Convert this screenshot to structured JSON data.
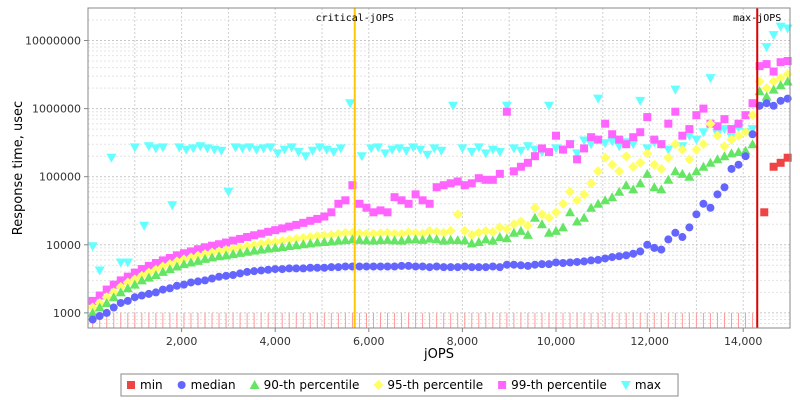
{
  "chart_data": {
    "type": "scatter",
    "title": "",
    "xlabel": "jOPS",
    "ylabel": "Response time, usec",
    "x_scale": "linear",
    "y_scale": "log",
    "xlim": [
      0,
      15000
    ],
    "ylim": [
      600,
      30000000
    ],
    "grid": true,
    "legend_position": "bottom",
    "x_ticks": [
      "2,000",
      "4,000",
      "6,000",
      "8,000",
      "10,000",
      "12,000",
      "14,000"
    ],
    "x_tick_values": [
      2000,
      4000,
      6000,
      8000,
      10000,
      12000,
      14000
    ],
    "y_ticks": [
      "1000",
      "10000",
      "100000",
      "1000000",
      "10000000"
    ],
    "y_tick_values": [
      1000,
      10000,
      100000,
      1000000,
      10000000
    ],
    "markers": [
      {
        "label": "critical-jOPS",
        "x": 5700,
        "color": "#ffc800"
      },
      {
        "label": "max-jOPS",
        "x": 14300,
        "color": "#dd0000"
      }
    ],
    "series": [
      {
        "name": "min",
        "color": "#ee4444",
        "shape": "square",
        "x": [
          14450,
          14650,
          14800,
          14950
        ],
        "y": [
          30000,
          140000,
          160000,
          190000
        ]
      },
      {
        "name": "median",
        "color": "#6464ff",
        "shape": "circle",
        "x": [
          100,
          250,
          400,
          550,
          700,
          850,
          1000,
          1150,
          1300,
          1450,
          1600,
          1750,
          1900,
          2050,
          2200,
          2350,
          2500,
          2650,
          2800,
          2950,
          3100,
          3250,
          3400,
          3550,
          3700,
          3850,
          4000,
          4150,
          4300,
          4450,
          4600,
          4750,
          4900,
          5050,
          5200,
          5350,
          5500,
          5650,
          5800,
          5950,
          6100,
          6250,
          6400,
          6550,
          6700,
          6850,
          7000,
          7150,
          7300,
          7450,
          7600,
          7750,
          7900,
          8050,
          8200,
          8350,
          8500,
          8650,
          8800,
          8950,
          9100,
          9250,
          9400,
          9550,
          9700,
          9850,
          10000,
          10150,
          10300,
          10450,
          10600,
          10750,
          10900,
          11050,
          11200,
          11350,
          11500,
          11650,
          11800,
          11950,
          12100,
          12250,
          12400,
          12550,
          12700,
          12850,
          13000,
          13150,
          13300,
          13450,
          13600,
          13750,
          13900,
          14050,
          14200,
          14350,
          14500,
          14650,
          14800,
          14950
        ],
        "y": [
          800,
          900,
          1000,
          1200,
          1400,
          1500,
          1700,
          1800,
          1900,
          2000,
          2200,
          2300,
          2500,
          2600,
          2800,
          2900,
          3000,
          3200,
          3400,
          3500,
          3600,
          3800,
          4000,
          4100,
          4200,
          4300,
          4400,
          4400,
          4500,
          4500,
          4500,
          4600,
          4600,
          4600,
          4700,
          4700,
          4800,
          4800,
          4800,
          4800,
          4800,
          4800,
          4800,
          4800,
          4900,
          4900,
          4800,
          4800,
          4700,
          4800,
          4700,
          4700,
          4700,
          4800,
          4700,
          4700,
          4700,
          4800,
          4700,
          5100,
          5100,
          5000,
          4900,
          5100,
          5200,
          5200,
          5500,
          5400,
          5500,
          5600,
          5700,
          5900,
          6000,
          6300,
          6600,
          6800,
          7000,
          7400,
          8000,
          10000,
          9000,
          8500,
          12000,
          15000,
          13000,
          18000,
          28000,
          40000,
          35000,
          55000,
          70000,
          130000,
          150000,
          200000,
          420000,
          1100000,
          1200000,
          1100000,
          1300000,
          1400000
        ]
      },
      {
        "name": "90-th percentile",
        "color": "#64e664",
        "shape": "triangle-up",
        "x": [
          100,
          250,
          400,
          550,
          700,
          850,
          1000,
          1150,
          1300,
          1450,
          1600,
          1750,
          1900,
          2050,
          2200,
          2350,
          2500,
          2650,
          2800,
          2950,
          3100,
          3250,
          3400,
          3550,
          3700,
          3850,
          4000,
          4150,
          4300,
          4450,
          4600,
          4750,
          4900,
          5050,
          5200,
          5350,
          5500,
          5650,
          5800,
          5950,
          6100,
          6250,
          6400,
          6550,
          6700,
          6850,
          7000,
          7150,
          7300,
          7450,
          7600,
          7750,
          7900,
          8050,
          8200,
          8350,
          8500,
          8650,
          8800,
          8950,
          9100,
          9250,
          9400,
          9550,
          9700,
          9850,
          10000,
          10150,
          10300,
          10450,
          10600,
          10750,
          10900,
          11050,
          11200,
          11350,
          11500,
          11650,
          11800,
          11950,
          12100,
          12250,
          12400,
          12550,
          12700,
          12850,
          13000,
          13150,
          13300,
          13450,
          13600,
          13750,
          13900,
          14050,
          14200,
          14350,
          14500,
          14650,
          14800,
          14950
        ],
        "y": [
          1000,
          1200,
          1400,
          1700,
          2000,
          2300,
          2600,
          3000,
          3300,
          3600,
          4000,
          4400,
          4800,
          5200,
          5500,
          5800,
          6200,
          6500,
          6800,
          7000,
          7300,
          7600,
          7900,
          8200,
          8500,
          8800,
          9000,
          9300,
          9600,
          9900,
          10200,
          10500,
          10800,
          11000,
          11200,
          11500,
          11700,
          12000,
          11800,
          11600,
          11500,
          11700,
          11800,
          11600,
          11500,
          11900,
          12000,
          11800,
          12300,
          12000,
          11500,
          11800,
          11700,
          11600,
          10500,
          11000,
          12000,
          11500,
          13000,
          12500,
          15000,
          16000,
          14000,
          25000,
          20000,
          15000,
          16000,
          18000,
          30000,
          22000,
          25000,
          35000,
          40000,
          45000,
          50000,
          60000,
          75000,
          65000,
          80000,
          110000,
          70000,
          65000,
          90000,
          120000,
          110000,
          100000,
          120000,
          140000,
          160000,
          180000,
          200000,
          220000,
          230000,
          240000,
          300000,
          1800000,
          1500000,
          1900000,
          2200000,
          2500000
        ]
      },
      {
        "name": "95-th percentile",
        "color": "#ffff64",
        "shape": "diamond",
        "x": [
          100,
          250,
          400,
          550,
          700,
          850,
          1000,
          1150,
          1300,
          1450,
          1600,
          1750,
          1900,
          2050,
          2200,
          2350,
          2500,
          2650,
          2800,
          2950,
          3100,
          3250,
          3400,
          3550,
          3700,
          3850,
          4000,
          4150,
          4300,
          4450,
          4600,
          4750,
          4900,
          5050,
          5200,
          5350,
          5500,
          5650,
          5800,
          5950,
          6100,
          6250,
          6400,
          6550,
          6700,
          6850,
          7000,
          7150,
          7300,
          7450,
          7600,
          7750,
          7900,
          8050,
          8200,
          8350,
          8500,
          8650,
          8800,
          8950,
          9100,
          9250,
          9400,
          9550,
          9700,
          9850,
          10000,
          10150,
          10300,
          10450,
          10600,
          10750,
          10900,
          11050,
          11200,
          11350,
          11500,
          11650,
          11800,
          11950,
          12100,
          12250,
          12400,
          12550,
          12700,
          12850,
          13000,
          13150,
          13300,
          13450,
          13600,
          13750,
          13900,
          14050,
          14200,
          14350,
          14500,
          14650,
          14800,
          14950
        ],
        "y": [
          1200,
          1400,
          1700,
          2000,
          2400,
          2800,
          3100,
          3500,
          3900,
          4300,
          4800,
          5200,
          5700,
          6100,
          6500,
          6900,
          7300,
          7700,
          8000,
          8400,
          8700,
          9100,
          9500,
          9900,
          10300,
          10700,
          11000,
          11400,
          11800,
          12200,
          12600,
          13000,
          13400,
          13700,
          14000,
          14500,
          15000,
          15000,
          14800,
          14600,
          14400,
          14700,
          15000,
          14600,
          14400,
          15200,
          15000,
          14500,
          16000,
          15500,
          15000,
          16000,
          28000,
          16000,
          14000,
          15000,
          16000,
          15500,
          18000,
          17000,
          20000,
          22000,
          19000,
          35000,
          28000,
          25000,
          30000,
          40000,
          60000,
          45000,
          55000,
          80000,
          120000,
          190000,
          150000,
          120000,
          200000,
          140000,
          160000,
          220000,
          150000,
          130000,
          190000,
          300000,
          250000,
          180000,
          250000,
          300000,
          600000,
          400000,
          280000,
          350000,
          400000,
          450000,
          800000,
          2500000,
          2000000,
          2500000,
          2800000,
          3200000
        ]
      },
      {
        "name": "99-th percentile",
        "color": "#ff64ff",
        "shape": "square",
        "x": [
          100,
          250,
          400,
          550,
          700,
          850,
          1000,
          1150,
          1300,
          1450,
          1600,
          1750,
          1900,
          2050,
          2200,
          2350,
          2500,
          2650,
          2800,
          2950,
          3100,
          3250,
          3400,
          3550,
          3700,
          3850,
          4000,
          4150,
          4300,
          4450,
          4600,
          4750,
          4900,
          5050,
          5200,
          5350,
          5500,
          5650,
          5800,
          5950,
          6100,
          6250,
          6400,
          6550,
          6700,
          6850,
          7000,
          7150,
          7300,
          7450,
          7600,
          7750,
          7900,
          8050,
          8200,
          8350,
          8500,
          8650,
          8800,
          8950,
          9100,
          9250,
          9400,
          9550,
          9700,
          9850,
          10000,
          10150,
          10300,
          10450,
          10600,
          10750,
          10900,
          11050,
          11200,
          11350,
          11500,
          11650,
          11800,
          11950,
          12100,
          12250,
          12400,
          12550,
          12700,
          12850,
          13000,
          13150,
          13300,
          13450,
          13600,
          13750,
          13900,
          14050,
          14200,
          14350,
          14500,
          14650,
          14800,
          14950
        ],
        "y": [
          1500,
          1800,
          2200,
          2600,
          3000,
          3400,
          3900,
          4400,
          4900,
          5400,
          5900,
          6400,
          7000,
          7500,
          8000,
          8600,
          9200,
          9700,
          10200,
          10800,
          11500,
          12200,
          13000,
          13800,
          14600,
          15500,
          16400,
          17400,
          18500,
          19600,
          21000,
          22500,
          24000,
          26000,
          30000,
          40000,
          45000,
          75000,
          40000,
          35000,
          30000,
          32000,
          30000,
          50000,
          45000,
          40000,
          55000,
          45000,
          40000,
          70000,
          75000,
          80000,
          85000,
          75000,
          80000,
          95000,
          90000,
          90000,
          110000,
          900000,
          120000,
          140000,
          160000,
          200000,
          260000,
          230000,
          400000,
          250000,
          300000,
          180000,
          260000,
          380000,
          350000,
          600000,
          420000,
          350000,
          300000,
          380000,
          450000,
          750000,
          350000,
          300000,
          600000,
          900000,
          400000,
          500000,
          800000,
          1000000,
          600000,
          550000,
          700000,
          500000,
          600000,
          800000,
          1200000,
          4200000,
          4500000,
          3500000,
          4800000,
          5000000
        ]
      },
      {
        "name": "max",
        "color": "#64ffff",
        "shape": "triangle-down",
        "x": [
          100,
          250,
          500,
          700,
          850,
          1000,
          1200,
          1300,
          1450,
          1600,
          1800,
          1950,
          2100,
          2250,
          2400,
          2550,
          2700,
          2850,
          3000,
          3150,
          3300,
          3450,
          3600,
          3750,
          3900,
          4050,
          4200,
          4350,
          4500,
          4650,
          4800,
          4950,
          5100,
          5250,
          5400,
          5600,
          5850,
          6050,
          6200,
          6350,
          6500,
          6650,
          6800,
          6950,
          7100,
          7250,
          7400,
          7550,
          7800,
          8000,
          8200,
          8350,
          8500,
          8650,
          8800,
          8950,
          9100,
          9250,
          9400,
          9550,
          9700,
          9850,
          10000,
          10150,
          10300,
          10450,
          10600,
          10750,
          10900,
          11050,
          11200,
          11350,
          11500,
          11650,
          11800,
          11950,
          12100,
          12250,
          12400,
          12550,
          12700,
          12850,
          13000,
          13150,
          13300,
          13450,
          13600,
          13750,
          13900,
          14050,
          14200,
          14350,
          14500,
          14650,
          14800,
          14950
        ],
        "y": [
          9500,
          4200,
          190000,
          5500,
          5500,
          270000,
          19000,
          280000,
          260000,
          270000,
          38000,
          270000,
          250000,
          260000,
          280000,
          260000,
          250000,
          240000,
          60000,
          270000,
          260000,
          270000,
          250000,
          260000,
          270000,
          220000,
          250000,
          270000,
          230000,
          200000,
          240000,
          270000,
          250000,
          230000,
          260000,
          1200000,
          200000,
          260000,
          270000,
          220000,
          250000,
          260000,
          240000,
          270000,
          250000,
          210000,
          260000,
          240000,
          1100000,
          260000,
          230000,
          270000,
          220000,
          250000,
          230000,
          1100000,
          260000,
          240000,
          280000,
          250000,
          230000,
          1100000,
          260000,
          250000,
          300000,
          220000,
          340000,
          300000,
          1400000,
          310000,
          330000,
          280000,
          320000,
          300000,
          1300000,
          260000,
          320000,
          300000,
          250000,
          1900000,
          280000,
          400000,
          350000,
          450000,
          2800000,
          420000,
          500000,
          380000,
          520000,
          450000,
          500000,
          1100000,
          8000000,
          12000000,
          16000000,
          15000000
        ]
      }
    ],
    "baseline_ticks_color": "#ff9999"
  },
  "legend": {
    "items": [
      {
        "label": "min"
      },
      {
        "label": "median"
      },
      {
        "label": "90-th percentile"
      },
      {
        "label": "95-th percentile"
      },
      {
        "label": "99-th percentile"
      },
      {
        "label": "max"
      }
    ]
  }
}
